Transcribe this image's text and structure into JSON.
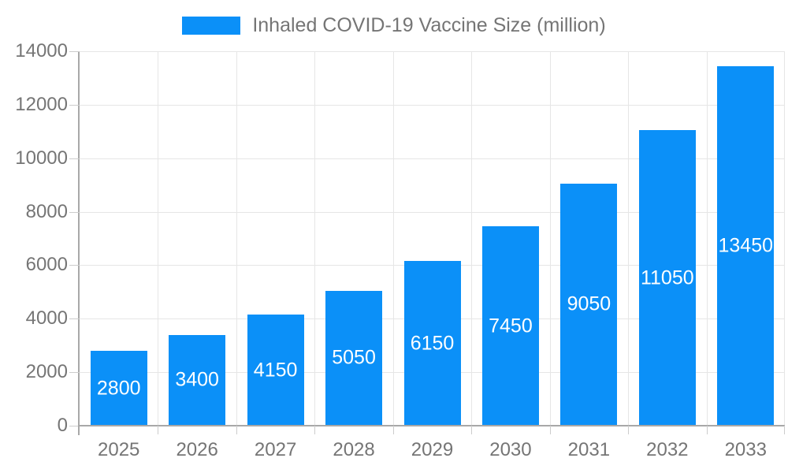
{
  "legend": {
    "label": "Inhaled COVID-19 Vaccine Size (million)"
  },
  "chart_data": {
    "type": "bar",
    "title": "",
    "xlabel": "",
    "ylabel": "",
    "categories": [
      "2025",
      "2026",
      "2027",
      "2028",
      "2029",
      "2030",
      "2031",
      "2032",
      "2033"
    ],
    "series": [
      {
        "name": "Inhaled COVID-19 Vaccine Size (million)",
        "values": [
          2800,
          3400,
          4150,
          5050,
          6150,
          7450,
          9050,
          11050,
          13450
        ]
      }
    ],
    "ylim": [
      0,
      14000
    ],
    "y_ticks": [
      0,
      2000,
      4000,
      6000,
      8000,
      10000,
      12000,
      14000
    ],
    "grid": true,
    "legend_position": "top-center",
    "colors": {
      "bar": "#0b90f8",
      "value_label": "#ffffff",
      "axis_text": "#757575",
      "gridline": "#e6e6e6",
      "axis_line": "#a8a8a8",
      "tick": "#cccccc"
    }
  }
}
